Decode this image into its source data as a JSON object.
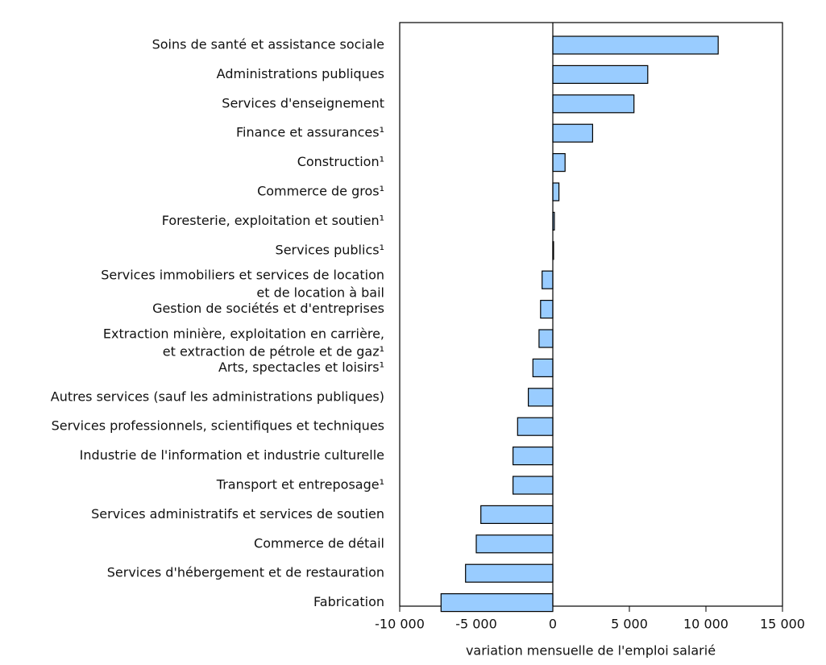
{
  "chart_data": {
    "type": "hbar",
    "x_label": "variation mensuelle de l'emploi salarié",
    "categories": [
      "Soins de santé et assistance sociale",
      "Administrations publiques",
      "Services d'enseignement",
      "Finance et assurances¹",
      "Construction¹",
      "Commerce de gros¹",
      "Foresterie, exploitation et soutien¹",
      "Services publics¹",
      [
        "Services immobiliers et services de location",
        "et de location à bail"
      ],
      "Gestion de sociétés et d'entreprises",
      [
        "Extraction minière, exploitation en carrière,",
        "et extraction de pétrole et de gaz¹"
      ],
      "Arts, spectacles et loisirs¹",
      "Autres services (sauf les administrations publiques)",
      "Services professionnels, scientifiques et techniques",
      "Industrie de l'information et industrie culturelle",
      "Transport et entreposage¹",
      "Services administratifs et services de soutien",
      "Commerce de détail",
      "Services d'hébergement et de restauration",
      "Fabrication"
    ],
    "values": [
      10800,
      6200,
      5300,
      2600,
      800,
      400,
      100,
      50,
      -700,
      -800,
      -900,
      -1300,
      -1600,
      -2300,
      -2600,
      -2600,
      -4700,
      -5000,
      -5700,
      -7300
    ],
    "color": "#99ccff",
    "xlim": [
      -10000,
      15000
    ],
    "xticks": [
      {
        "value": -10000,
        "label": "-10 000"
      },
      {
        "value": -5000,
        "label": "-5 000"
      },
      0,
      {
        "value": 5000,
        "label": "5 000"
      },
      {
        "value": 10000,
        "label": "10 000"
      },
      {
        "value": 15000,
        "label": "15 000"
      }
    ]
  }
}
